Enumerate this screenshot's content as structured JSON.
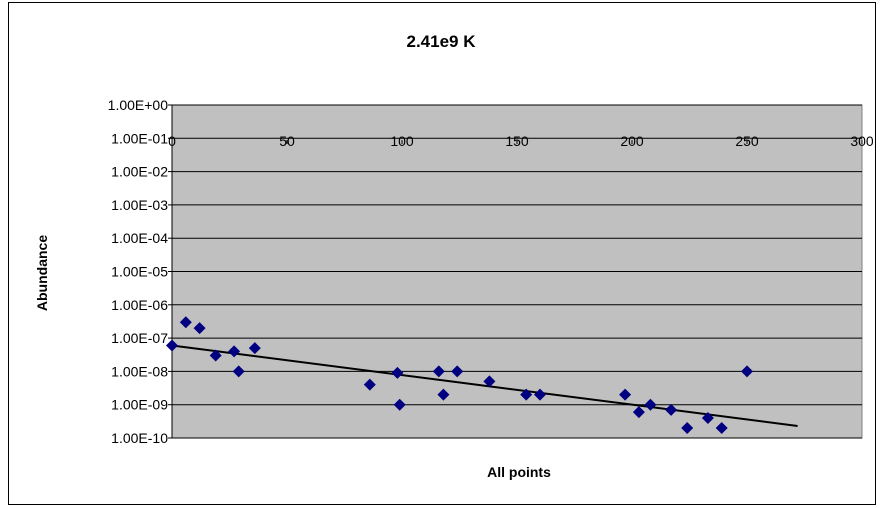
{
  "chart_data": {
    "type": "scatter",
    "title": "2.41e9 K",
    "xlabel": "All points",
    "ylabel": "Abundance",
    "xlim": [
      0,
      300
    ],
    "ylim": [
      1e-10,
      1
    ],
    "yscale": "log",
    "grid": true,
    "legend": "none",
    "x_ticks": [
      "0",
      "50",
      "100",
      "150",
      "200",
      "250",
      "300"
    ],
    "y_ticks": [
      "1.00E+00",
      "1.00E-01",
      "1.00E-02",
      "1.00E-03",
      "1.00E-04",
      "1.00E-05",
      "1.00E-06",
      "1.00E-07",
      "1.00E-08",
      "1.00E-09",
      "1.00E-10"
    ],
    "colors": {
      "plot_bg": "#c0c0c0",
      "marker": "#000080",
      "trendline": "#000000"
    },
    "series": [
      {
        "marker": "diamond",
        "points": [
          [
            0,
            6e-08
          ],
          [
            6,
            3e-07
          ],
          [
            12,
            2e-07
          ],
          [
            19,
            3e-08
          ],
          [
            27,
            4e-08
          ],
          [
            29,
            1e-08
          ],
          [
            36,
            5e-08
          ],
          [
            86,
            4e-09
          ],
          [
            98,
            9e-09
          ],
          [
            99,
            1e-09
          ],
          [
            116,
            1e-08
          ],
          [
            118,
            2e-09
          ],
          [
            124,
            1e-08
          ],
          [
            138,
            5e-09
          ],
          [
            154,
            2e-09
          ],
          [
            160,
            2e-09
          ],
          [
            197,
            2e-09
          ],
          [
            203,
            6e-10
          ],
          [
            208,
            1e-09
          ],
          [
            217,
            7e-10
          ],
          [
            224,
            2e-10
          ],
          [
            233,
            4e-10
          ],
          [
            239,
            2e-10
          ],
          [
            250,
            1e-08
          ]
        ]
      }
    ],
    "trendline": {
      "type": "exponential",
      "points": [
        [
          0,
          6e-08
        ],
        [
          272,
          2.3e-10
        ]
      ]
    }
  }
}
